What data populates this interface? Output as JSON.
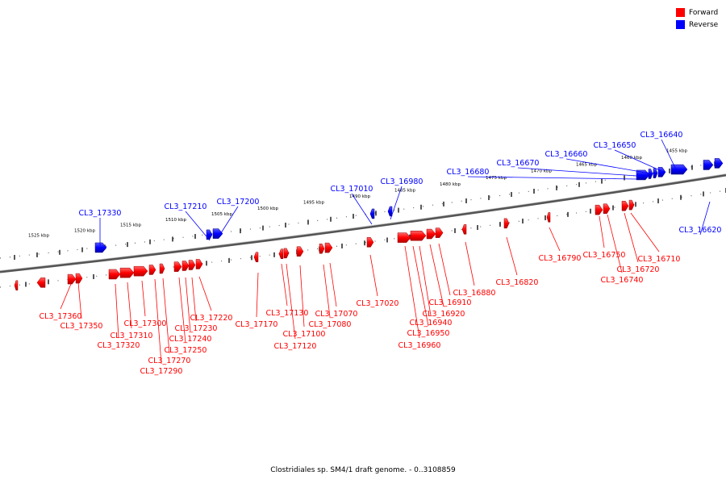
{
  "legend": {
    "forward_label": "Forward",
    "reverse_label": "Reverse",
    "forward_color": "#ff0000",
    "reverse_color": "#0000ff"
  },
  "caption": "Clostridiales sp. SM4/1 draft genome. - 0..3108859",
  "scale_labels": [
    "1525 kbp",
    "1520 kbp",
    "1515 kbp",
    "1510 kbp",
    "1505 kbp",
    "1500 kbp",
    "1495 kbp",
    "1490 kbp",
    "1485 kbp",
    "1480 kbp",
    "1475 kbp",
    "1470 kbp",
    "1465 kbp",
    "1460 kbp",
    "1455 kbp"
  ],
  "genes": {
    "reverse": [
      "CL3_17330",
      "CL3_17210",
      "CL3_17200",
      "CL3_17010",
      "CL3_16980",
      "CL3_16680",
      "CL3_16670",
      "CL3_16660",
      "CL3_16650",
      "CL3_16640",
      "CL3_16620"
    ],
    "forward": [
      "CL3_17360",
      "CL3_17350",
      "CL3_17320",
      "CL3_17310",
      "CL3_17300",
      "CL3_17290",
      "CL3_17270",
      "CL3_17250",
      "CL3_17240",
      "CL3_17230",
      "CL3_17220",
      "CL3_17170",
      "CL3_17130",
      "CL3_17120",
      "CL3_17100",
      "CL3_17080",
      "CL3_17070",
      "CL3_17020",
      "CL3_16960",
      "CL3_16950",
      "CL3_16940",
      "CL3_16920",
      "CL3_16910",
      "CL3_16880",
      "CL3_16820",
      "CL3_16790",
      "CL3_16750",
      "CL3_16740",
      "CL3_16720",
      "CL3_16710"
    ]
  }
}
